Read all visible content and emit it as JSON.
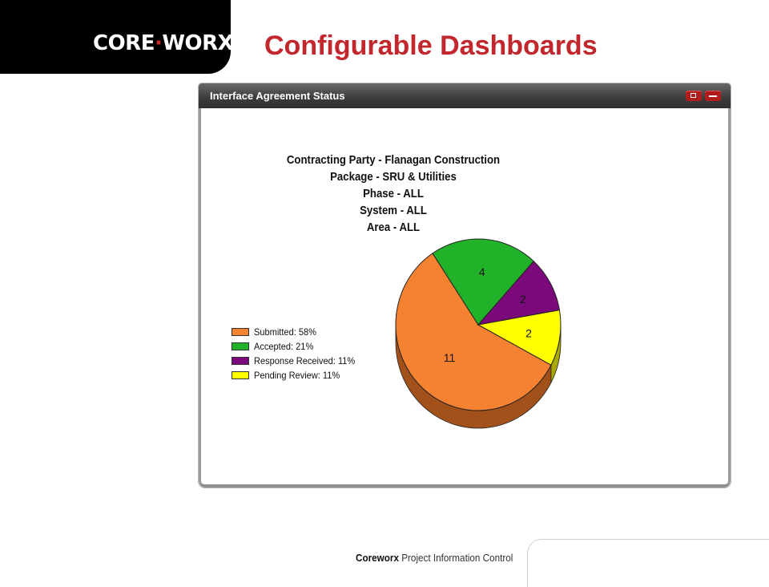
{
  "logo": {
    "left": "CORE",
    "right": "WORX"
  },
  "slide_title": "Configurable Dashboards",
  "widget": {
    "title": "Interface Agreement Status",
    "buttons": {
      "popout_icon": "popout-icon",
      "minimize_icon": "minimize-icon"
    }
  },
  "chart_data": {
    "type": "pie",
    "title_lines": [
      "Contracting Party - Flanagan Construction",
      "Package - SRU & Utilities",
      "Phase - ALL",
      "System - ALL",
      "Area - ALL"
    ],
    "categories": [
      "Submitted",
      "Accepted",
      "Response Received",
      "Pending Review"
    ],
    "values": [
      11,
      4,
      2,
      2
    ],
    "value_labels": [
      "11",
      "4",
      "2",
      "2"
    ],
    "legend_labels": [
      "Submitted: 58%",
      "Accepted: 21%",
      "Response Received: 11%",
      "Pending Review: 11%"
    ],
    "colors": [
      "#f58231",
      "#22b22a",
      "#7a0a7a",
      "#ffff00"
    ],
    "side_colors": [
      "#a3511b",
      "#167a1a",
      "#4e064e",
      "#a8a800"
    ],
    "legend_placement": "left",
    "style": "3d"
  },
  "footer": {
    "brand": "Coreworx",
    "text": "Project Information Control"
  }
}
